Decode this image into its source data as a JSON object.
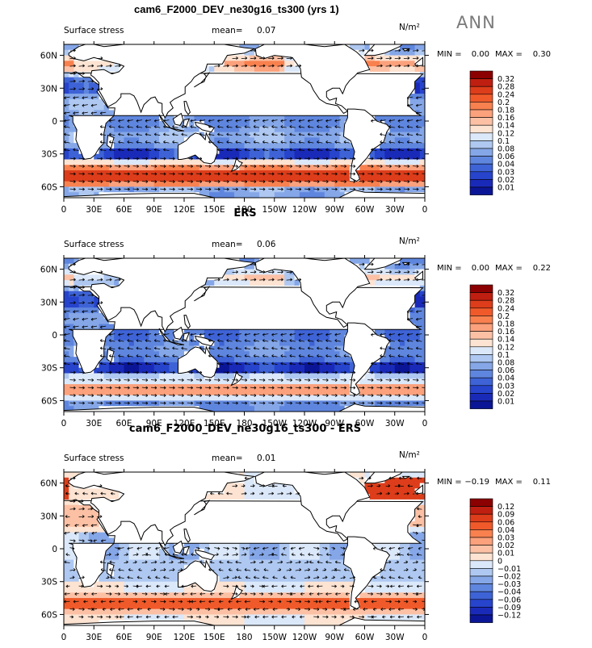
{
  "header": {
    "title": "cam6_F2000_DEV_ne30g16_ts300 (yrs 1)",
    "season": "ANN"
  },
  "panel_titles": [
    "",
    "ERS",
    "cam6_F2000_DEV_ne30g16_ts300 - ERS"
  ],
  "units": [
    "N/m²",
    "N/m²",
    "N/m²"
  ],
  "chart_data": [
    {
      "type": "heatmap",
      "title": "Surface stress",
      "mean_label": "mean=",
      "mean": "0.07",
      "min_label": "MIN =",
      "min": "0.00",
      "max_label": "MAX =",
      "max": "0.30",
      "xticks": [
        "0",
        "30E",
        "60E",
        "90E",
        "120E",
        "150E",
        "180",
        "150W",
        "120W",
        "90W",
        "60W",
        "30W",
        "0"
      ],
      "yticks": [
        "60N",
        "30N",
        "0",
        "30S",
        "60S"
      ],
      "ytick_values": [
        60,
        30,
        0,
        -30,
        -60
      ],
      "ylim": [
        -70,
        70
      ],
      "contour_levels": [
        "0.32",
        "0.28",
        "0.24",
        "0.2",
        "0.18",
        "0.16",
        "0.14",
        "0.12",
        "0.1",
        "0.08",
        "0.06",
        "0.04",
        "0.03",
        "0.02",
        "0.01"
      ],
      "level_colors": [
        "#8b0000",
        "#bf1f10",
        "#dd3d1a",
        "#f05a2a",
        "#f8814f",
        "#fba17c",
        "#fcc1a5",
        "#fde3d2",
        "#dbe8fa",
        "#aec8f1",
        "#85a7e8",
        "#5f86de",
        "#3e63d6",
        "#2744cc",
        "#1a2ab8",
        "#0b1696"
      ],
      "field": "magnitude"
    },
    {
      "type": "heatmap",
      "title": "Surface stress",
      "mean_label": "mean=",
      "mean": "0.06",
      "min_label": "MIN =",
      "min": "0.00",
      "max_label": "MAX =",
      "max": "0.22",
      "xticks": [
        "0",
        "30E",
        "60E",
        "90E",
        "120E",
        "150E",
        "180",
        "150W",
        "120W",
        "90W",
        "60W",
        "30W",
        "0"
      ],
      "yticks": [
        "60N",
        "30N",
        "0",
        "30S",
        "60S"
      ],
      "ytick_values": [
        60,
        30,
        0,
        -30,
        -60
      ],
      "ylim": [
        -70,
        70
      ],
      "contour_levels": [
        "0.32",
        "0.28",
        "0.24",
        "0.2",
        "0.18",
        "0.16",
        "0.14",
        "0.12",
        "0.1",
        "0.08",
        "0.06",
        "0.04",
        "0.03",
        "0.02",
        "0.01"
      ],
      "level_colors": [
        "#8b0000",
        "#bf1f10",
        "#dd3d1a",
        "#f05a2a",
        "#f8814f",
        "#fba17c",
        "#fcc1a5",
        "#fde3d2",
        "#dbe8fa",
        "#aec8f1",
        "#85a7e8",
        "#5f86de",
        "#3e63d6",
        "#2744cc",
        "#1a2ab8",
        "#0b1696"
      ],
      "field": "obs"
    },
    {
      "type": "heatmap",
      "title": "Surface stress",
      "mean_label": "mean=",
      "mean": "0.01",
      "min_label": "MIN =",
      "min": "−0.19",
      "max_label": "MAX =",
      "max": "0.11",
      "xticks": [
        "0",
        "30E",
        "60E",
        "90E",
        "120E",
        "150E",
        "180",
        "150W",
        "120W",
        "90W",
        "60W",
        "30W",
        "0"
      ],
      "yticks": [
        "60N",
        "30N",
        "0",
        "30S",
        "60S"
      ],
      "ytick_values": [
        60,
        30,
        0,
        -30,
        -60
      ],
      "ylim": [
        -70,
        70
      ],
      "contour_levels": [
        "0.12",
        "0.09",
        "0.06",
        "0.04",
        "0.03",
        "0.02",
        "0.01",
        "0",
        "−0.01",
        "−0.02",
        "−0.03",
        "−0.04",
        "−0.06",
        "−0.09",
        "−0.12"
      ],
      "level_colors": [
        "#8b0000",
        "#bf1f10",
        "#dd3d1a",
        "#f05a2a",
        "#f8814f",
        "#fba17c",
        "#fcc1a5",
        "#fde3d2",
        "#dbe8fa",
        "#aec8f1",
        "#85a7e8",
        "#5f86de",
        "#3e63d6",
        "#2744cc",
        "#1a2ab8",
        "#0b1696"
      ],
      "field": "diff"
    }
  ]
}
